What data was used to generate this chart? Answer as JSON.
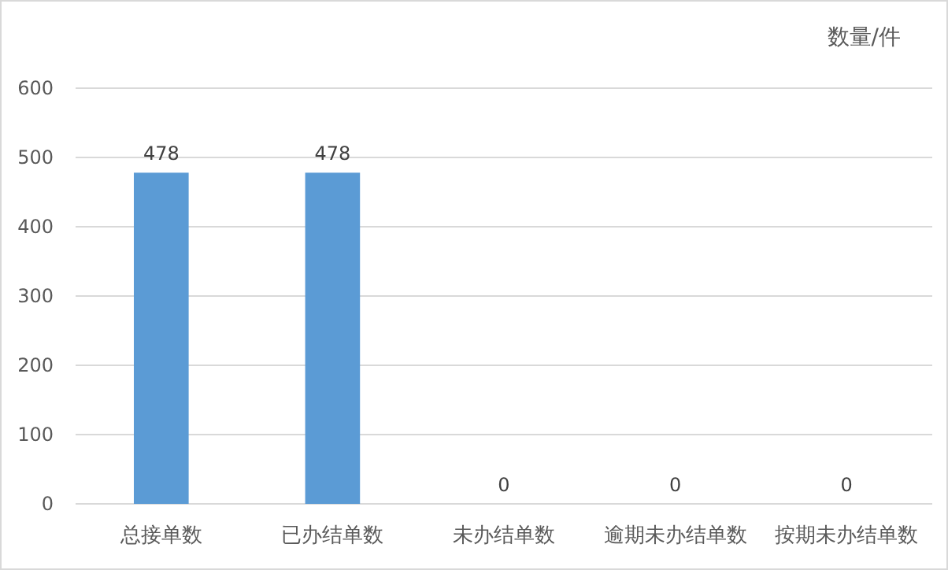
{
  "chart_data": {
    "type": "bar",
    "ylabel": "数量/件",
    "categories": [
      "总接单数",
      "已办结单数",
      "未办结单数",
      "逾期未办结单数",
      "按期未办结单数"
    ],
    "values": [
      478,
      478,
      0,
      0,
      0
    ],
    "color": "#5b9bd5",
    "ylim": [
      0,
      600
    ],
    "yticks": [
      0,
      100,
      200,
      300,
      400,
      500,
      600
    ],
    "grid": "y",
    "data_labels": true
  }
}
